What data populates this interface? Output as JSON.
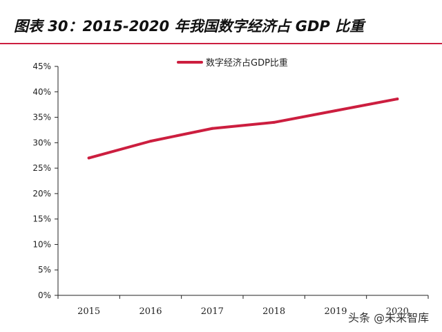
{
  "title": "图表 30：2015-2020 年我国数字经济占 GDP 比重",
  "watermark": "头条 @未来智库",
  "colors": {
    "accent": "#cc1e3f",
    "line": "#cc1e3f",
    "axis": "#222222"
  },
  "chart_data": {
    "type": "line",
    "categories": [
      "2015",
      "2016",
      "2017",
      "2018",
      "2019",
      "2020"
    ],
    "series": [
      {
        "name": "数字经济占GDP比重",
        "values": [
          27.0,
          30.3,
          32.8,
          34.0,
          36.3,
          38.6
        ]
      }
    ],
    "yticks": [
      "0%",
      "5%",
      "10%",
      "15%",
      "20%",
      "25%",
      "30%",
      "35%",
      "40%",
      "45%"
    ],
    "ylim": [
      0,
      45
    ],
    "title": "",
    "xlabel": "",
    "ylabel": "",
    "grid": false,
    "legend": "top-center"
  }
}
